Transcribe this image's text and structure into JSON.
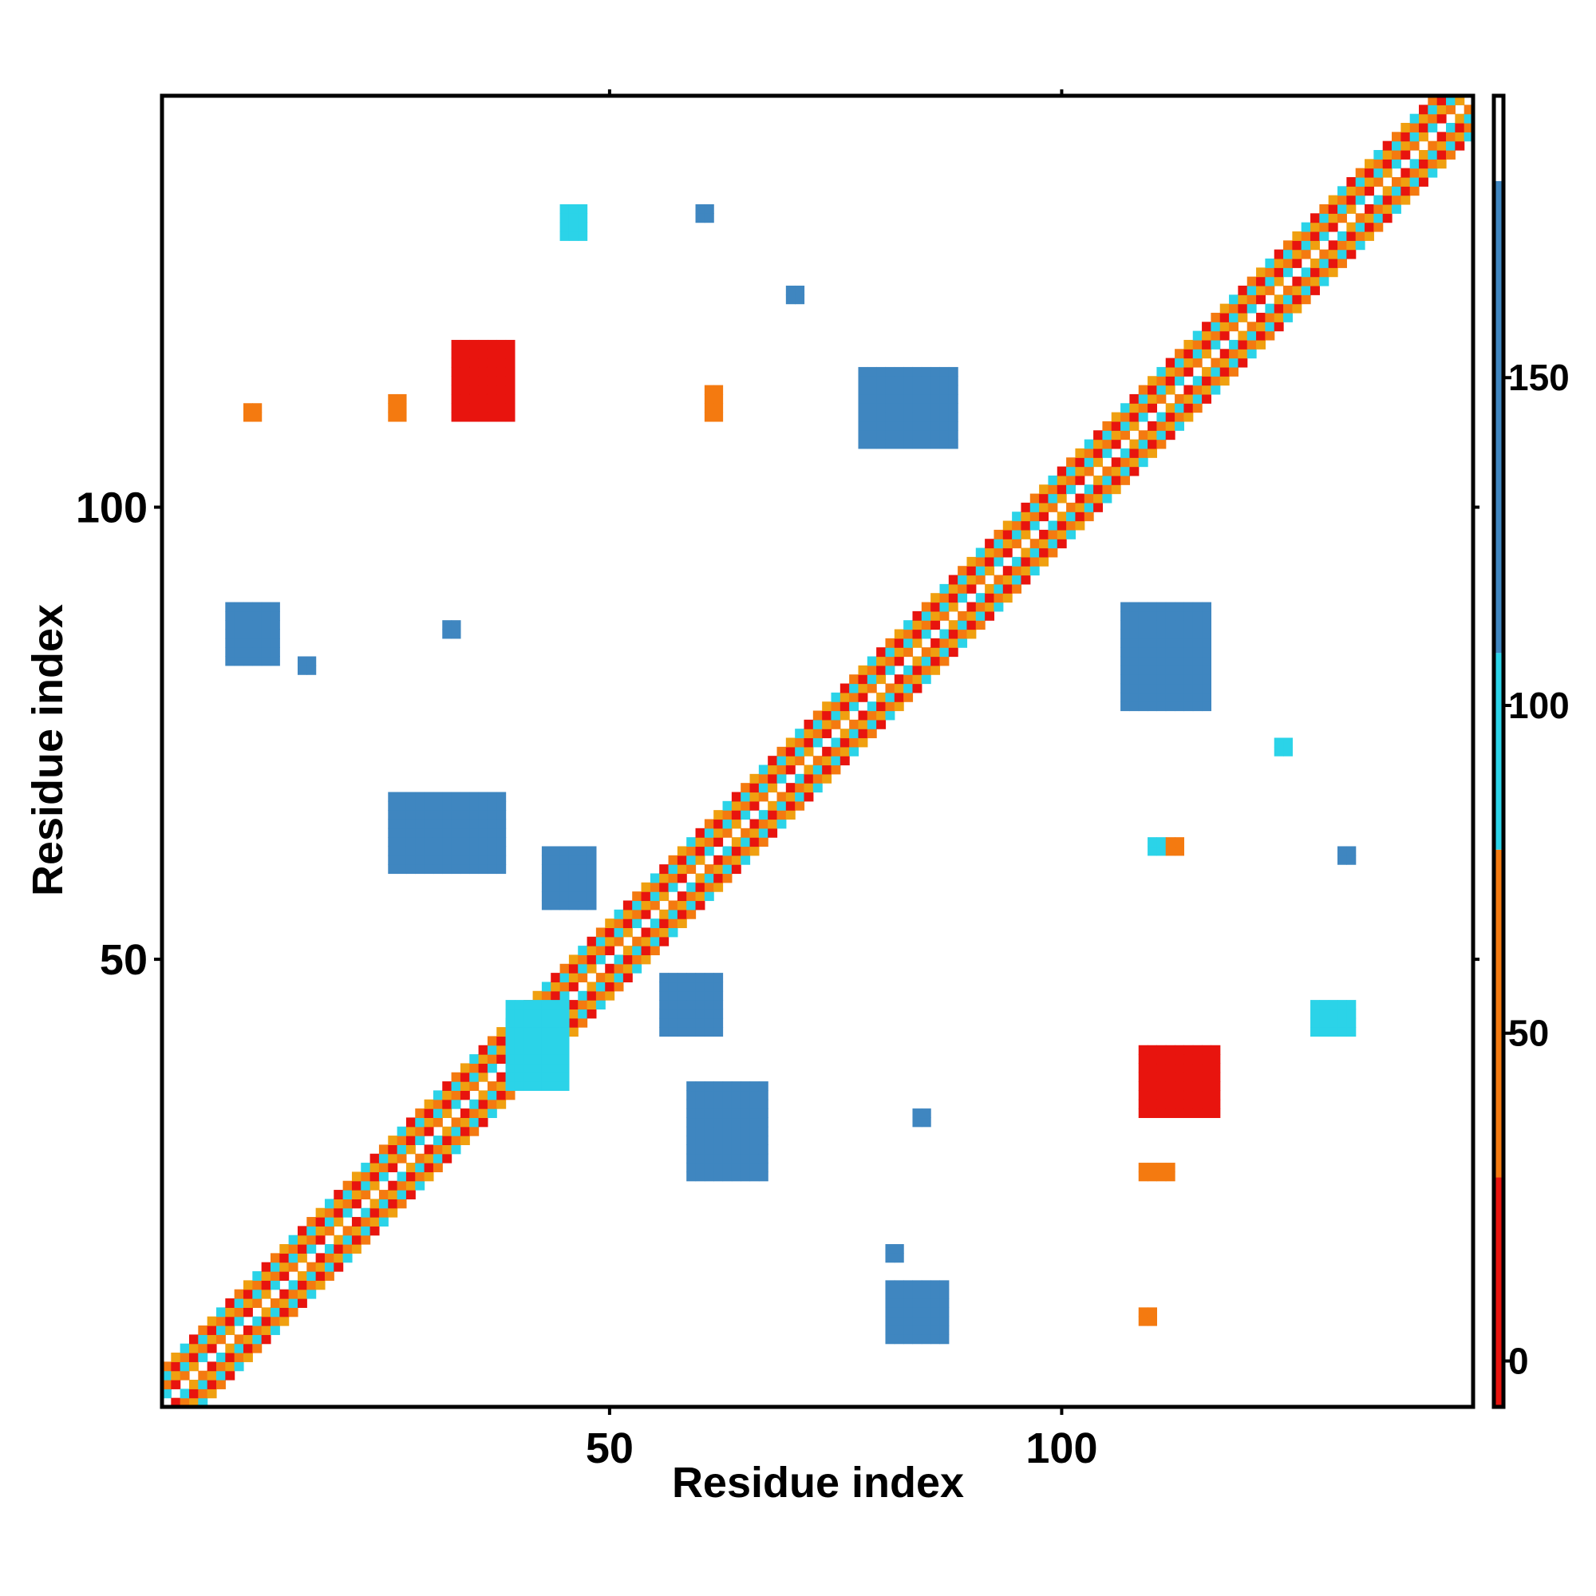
{
  "chart_data": {
    "type": "heatmap",
    "title": "",
    "xlabel": "Residue index",
    "ylabel": "Residue index",
    "xlim": [
      1,
      145
    ],
    "ylim": [
      1,
      145
    ],
    "x_ticks": [
      50,
      100
    ],
    "y_ticks": [
      50,
      100
    ],
    "grid": false,
    "colorbar": {
      "ticks": [
        0,
        50,
        100,
        150
      ],
      "range": [
        -7,
        193
      ],
      "bands": [
        {
          "from": -7,
          "to": 28,
          "color": "#e8140e"
        },
        {
          "from": 28,
          "to": 78,
          "color": "#f47a10"
        },
        {
          "from": 78,
          "to": 108,
          "color": "#2bd3e8"
        },
        {
          "from": 108,
          "to": 180,
          "color": "#3f86c0"
        },
        {
          "from": 180,
          "to": 193,
          "color": "#ffffff"
        }
      ]
    },
    "diagonal_band": {
      "from": 1,
      "to": 145,
      "width": 4,
      "colors": [
        "#e8140e",
        "#f47a10",
        "#f0a010",
        "#2bd3e8"
      ]
    },
    "contact_regions": [
      {
        "x": [
          45,
          47
        ],
        "y": [
          130,
          133
        ],
        "value": 100
      },
      {
        "x": [
          60,
          61
        ],
        "y": [
          132,
          133
        ],
        "value": 110
      },
      {
        "x": [
          70,
          71
        ],
        "y": [
          123,
          124
        ],
        "value": 110
      },
      {
        "x": [
          33,
          39
        ],
        "y": [
          110,
          118
        ],
        "value": 10
      },
      {
        "x": [
          26,
          27
        ],
        "y": [
          110,
          112
        ],
        "value": 55
      },
      {
        "x": [
          10,
          11
        ],
        "y": [
          110,
          111
        ],
        "value": 60
      },
      {
        "x": [
          61,
          62
        ],
        "y": [
          110,
          113
        ],
        "value": 55
      },
      {
        "x": [
          78,
          88
        ],
        "y": [
          107,
          115
        ],
        "value": 140
      },
      {
        "x": [
          8,
          13
        ],
        "y": [
          83,
          89
        ],
        "value": 120
      },
      {
        "x": [
          16,
          17
        ],
        "y": [
          82,
          83
        ],
        "value": 130
      },
      {
        "x": [
          32,
          33
        ],
        "y": [
          86,
          87
        ],
        "value": 130
      },
      {
        "x": [
          107,
          116
        ],
        "y": [
          78,
          89
        ],
        "value": 140
      },
      {
        "x": [
          124,
          125
        ],
        "y": [
          73,
          74
        ],
        "value": 100
      },
      {
        "x": [
          26,
          38
        ],
        "y": [
          60,
          68
        ],
        "value": 120
      },
      {
        "x": [
          43,
          48
        ],
        "y": [
          56,
          62
        ],
        "value": 115
      },
      {
        "x": [
          110,
          111
        ],
        "y": [
          62,
          63
        ],
        "value": 100
      },
      {
        "x": [
          112,
          113
        ],
        "y": [
          62,
          63
        ],
        "value": 55
      },
      {
        "x": [
          131,
          132
        ],
        "y": [
          61,
          62
        ],
        "value": 120
      },
      {
        "x": [
          56,
          62
        ],
        "y": [
          42,
          48
        ],
        "value": 120
      },
      {
        "x": [
          39,
          45
        ],
        "y": [
          36,
          45
        ],
        "value": 100
      },
      {
        "x": [
          59,
          67
        ],
        "y": [
          26,
          36
        ],
        "value": 115
      },
      {
        "x": [
          128,
          132
        ],
        "y": [
          42,
          45
        ],
        "value": 100
      },
      {
        "x": [
          109,
          117
        ],
        "y": [
          33,
          40
        ],
        "value": 10
      },
      {
        "x": [
          109,
          112
        ],
        "y": [
          26,
          27
        ],
        "value": 55
      },
      {
        "x": [
          84,
          85
        ],
        "y": [
          32,
          33
        ],
        "value": 130
      },
      {
        "x": [
          81,
          82
        ],
        "y": [
          17,
          18
        ],
        "value": 130
      },
      {
        "x": [
          81,
          87
        ],
        "y": [
          8,
          14
        ],
        "value": 110
      },
      {
        "x": [
          109,
          110
        ],
        "y": [
          10,
          11
        ],
        "value": 60
      }
    ]
  }
}
